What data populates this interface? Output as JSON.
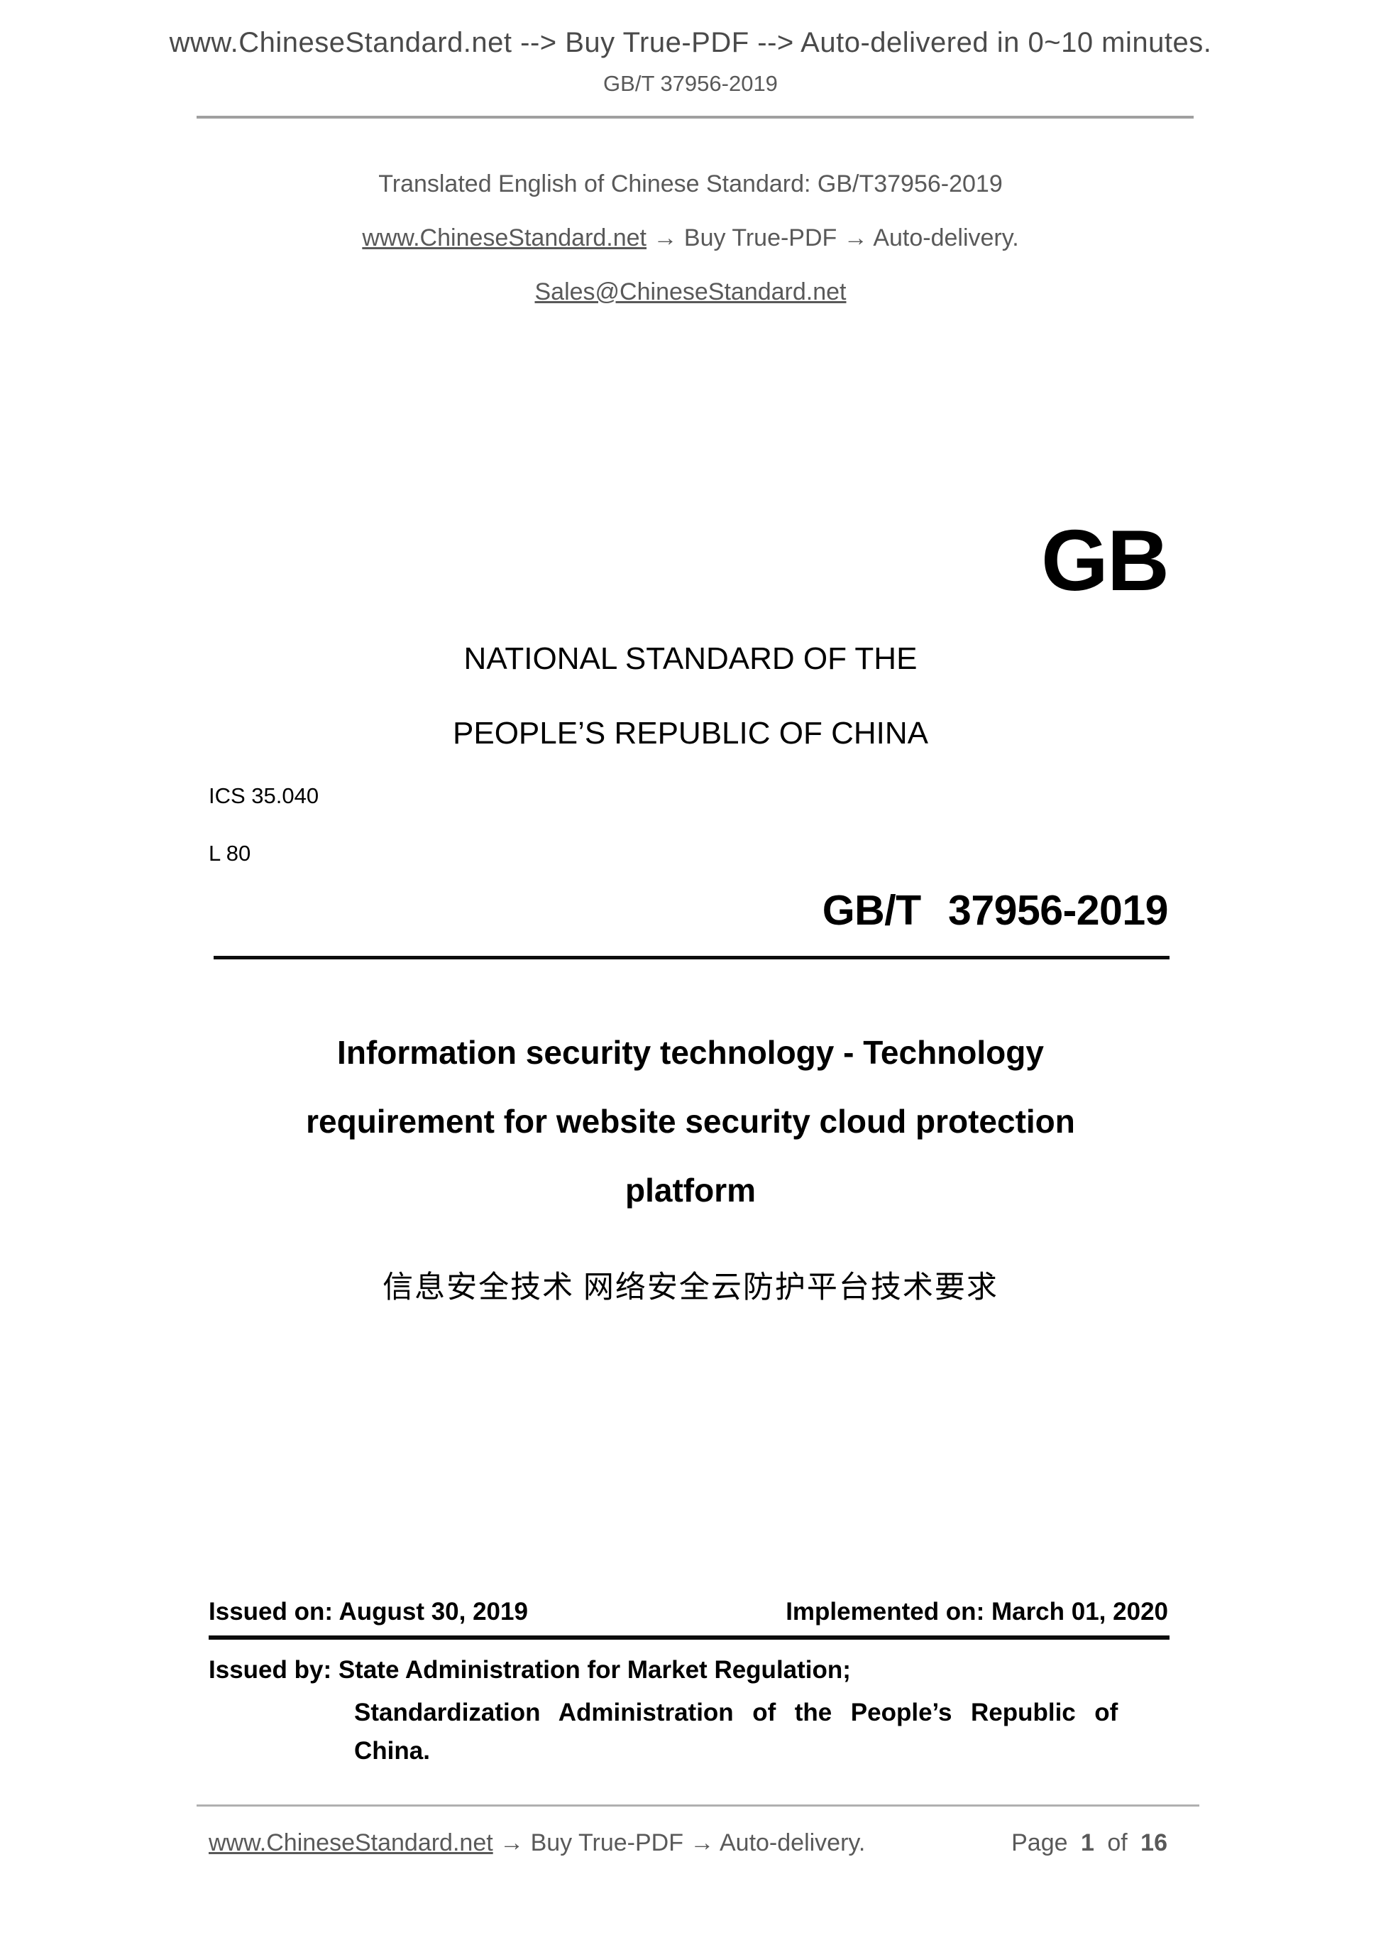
{
  "colors": {
    "text_gray": "#595959",
    "text_black": "#000000",
    "rule_gray": "#a0a0a0"
  },
  "header": {
    "line1": "www.ChineseStandard.net --> Buy True-PDF --> Auto-delivered in 0~10 minutes.",
    "doc_code": "GB/T 37956-2019"
  },
  "intro": {
    "line1": "Translated English of Chinese Standard: GB/T37956-2019",
    "site_link": "www.ChineseStandard.net",
    "line2_rest": " → Buy True-PDF → Auto-delivery.",
    "email": "Sales@ChineseStandard.net"
  },
  "gb_logo": "GB",
  "national_standard": {
    "line1": "NATIONAL STANDARD OF THE",
    "line2": "PEOPLE’S REPUBLIC OF CHINA"
  },
  "classification": {
    "ics": "ICS 35.040",
    "l_code": "L 80"
  },
  "standard_number": "GB/T 37956-2019",
  "title_en": {
    "line1": "Information security technology - Technology",
    "line2": "requirement for website security cloud protection",
    "line3": "platform"
  },
  "title_zh": "信息安全技术 网络安全云防护平台技术要求",
  "dates": {
    "issued": "Issued on: August 30, 2019",
    "implemented": "Implemented on: March 01, 2020"
  },
  "issuer": {
    "line1": "Issued by: State Administration for Market Regulation;",
    "line2": "Standardization Administration of the People’s Republic of",
    "line3": "China."
  },
  "footer": {
    "site_link": "www.ChineseStandard.net",
    "rest": " → Buy True-PDF → Auto-delivery.",
    "page_label": "Page",
    "page_current": "1",
    "of_label": "of",
    "page_total": "16"
  }
}
